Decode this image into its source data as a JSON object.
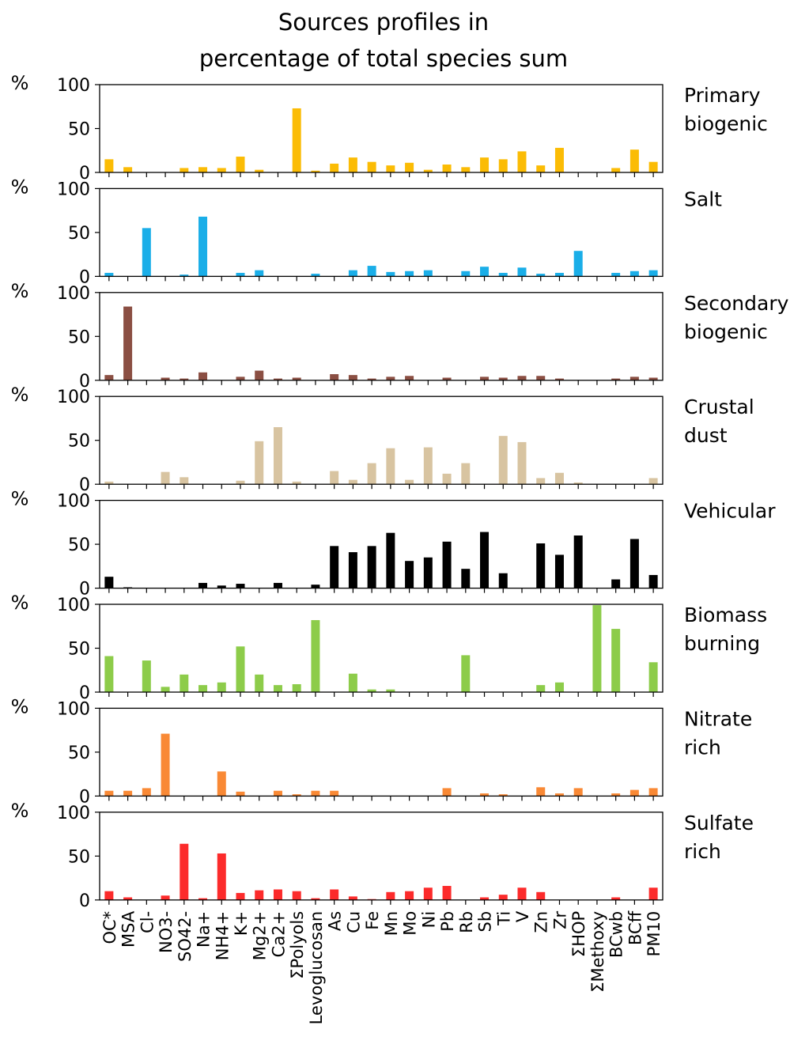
{
  "chart_data": {
    "type": "bar",
    "title_lines": [
      "Sources profiles in",
      "percentage of total species sum"
    ],
    "ylabel": "%",
    "ylim": [
      0,
      100
    ],
    "yticks": [
      0,
      50,
      100
    ],
    "grid": false,
    "legend": "none",
    "categories": [
      "OC*",
      "MSA",
      "Cl-",
      "NO3-",
      "SO42-",
      "Na+",
      "NH4+",
      "K+",
      "Mg2+",
      "Ca2+",
      "ΣPolyols",
      "Levoglucosan",
      "As",
      "Cu",
      "Fe",
      "Mn",
      "Mo",
      "Ni",
      "Pb",
      "Rb",
      "Sb",
      "Ti",
      "V",
      "Zn",
      "Zr",
      "ΣHOP",
      "ΣMethoxy",
      "BCwb",
      "BCff",
      "PM10"
    ],
    "series": [
      {
        "name_lines": [
          "Primary",
          "biogenic"
        ],
        "color": "#fbbc05",
        "values": [
          15,
          6,
          0,
          0,
          5,
          6,
          5,
          18,
          3,
          0,
          73,
          2,
          10,
          17,
          12,
          8,
          11,
          3,
          9,
          6,
          17,
          15,
          24,
          8,
          28,
          0,
          0,
          5,
          26,
          12
        ]
      },
      {
        "name_lines": [
          "Salt"
        ],
        "color": "#1aaee8",
        "values": [
          4,
          0,
          55,
          0,
          2,
          68,
          0,
          4,
          7,
          0,
          0,
          3,
          0,
          7,
          12,
          5,
          6,
          7,
          0,
          6,
          11,
          4,
          10,
          3,
          4,
          29,
          0,
          4,
          6,
          7
        ]
      },
      {
        "name_lines": [
          "Secondary",
          "biogenic"
        ],
        "color": "#8b4f43",
        "values": [
          6,
          84,
          0,
          3,
          2,
          9,
          0,
          4,
          11,
          2,
          3,
          0,
          7,
          6,
          2,
          4,
          5,
          0,
          3,
          0,
          4,
          3,
          5,
          5,
          2,
          0,
          0,
          2,
          4,
          3
        ]
      },
      {
        "name_lines": [
          "Crustal",
          "dust"
        ],
        "color": "#d8c4a1",
        "values": [
          3,
          0,
          0,
          14,
          8,
          0,
          0,
          4,
          49,
          65,
          3,
          0,
          15,
          5,
          24,
          41,
          5,
          42,
          12,
          24,
          0,
          55,
          48,
          7,
          13,
          2,
          0,
          0,
          0,
          7
        ]
      },
      {
        "name_lines": [
          "Vehicular"
        ],
        "color": "#000000",
        "values": [
          13,
          1,
          0,
          0,
          0,
          6,
          3,
          5,
          0,
          6,
          0,
          4,
          48,
          41,
          48,
          63,
          31,
          35,
          53,
          22,
          64,
          17,
          0,
          51,
          38,
          60,
          0,
          10,
          56,
          15
        ]
      },
      {
        "name_lines": [
          "Biomass",
          "burning"
        ],
        "color": "#8dcc4a",
        "values": [
          41,
          0,
          36,
          6,
          20,
          8,
          11,
          52,
          20,
          8,
          9,
          82,
          0,
          21,
          3,
          3,
          0,
          0,
          0,
          42,
          0,
          0,
          0,
          8,
          11,
          0,
          99,
          72,
          0,
          34
        ]
      },
      {
        "name_lines": [
          "Nitrate",
          "rich"
        ],
        "color": "#f98935",
        "values": [
          6,
          6,
          9,
          71,
          0,
          0,
          28,
          5,
          0,
          6,
          2,
          6,
          6,
          0,
          0,
          0,
          0,
          0,
          9,
          0,
          3,
          2,
          0,
          10,
          3,
          9,
          0,
          3,
          7,
          9
        ]
      },
      {
        "name_lines": [
          "Sulfate",
          "rich"
        ],
        "color": "#fc2b2b",
        "values": [
          10,
          3,
          0,
          5,
          64,
          2,
          53,
          8,
          11,
          12,
          10,
          2,
          12,
          4,
          1,
          9,
          10,
          14,
          16,
          0,
          3,
          6,
          14,
          9,
          0,
          0,
          0,
          3,
          0,
          14
        ]
      }
    ]
  }
}
